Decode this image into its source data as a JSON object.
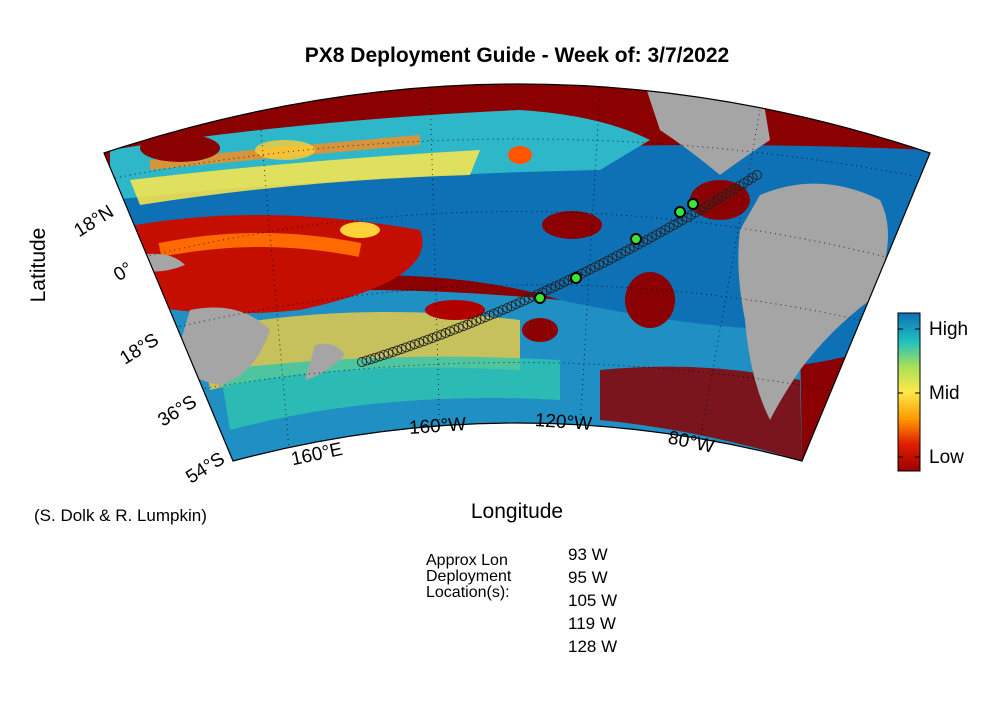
{
  "title": "PX8 Deployment Guide - Week of: 3/7/2022",
  "axes": {
    "xlabel": "Longitude",
    "ylabel": "Latitude"
  },
  "lat_labels": [
    "18°N",
    "0°",
    "18°S",
    "36°S",
    "54°S"
  ],
  "lon_labels": [
    "160°E",
    "160°W",
    "120°W",
    "80°W"
  ],
  "colorbar": {
    "labels": [
      "High",
      "Mid",
      "Low"
    ],
    "colors": [
      "#9b0000",
      "#e01e00",
      "#ff9a00",
      "#ffe84a",
      "#a8e05a",
      "#1fc0c0",
      "#0e71b6"
    ]
  },
  "credit": "(S. Dolk & R. Lumpkin)",
  "deployment": {
    "label_lines": [
      "Approx Lon",
      "Deployment",
      "Location(s):"
    ],
    "longitudes": [
      "93 W",
      "95 W",
      "105 W",
      "119 W",
      "128 W"
    ]
  },
  "colors": {
    "land": "#a5a5a5",
    "ocean_high": "#0e71b6",
    "low": "#8b0000",
    "marker": "#39e639"
  }
}
